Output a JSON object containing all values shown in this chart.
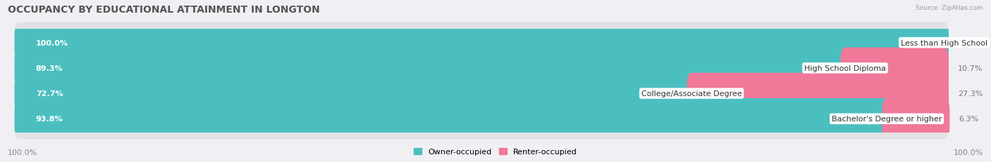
{
  "title": "OCCUPANCY BY EDUCATIONAL ATTAINMENT IN LONGTON",
  "source": "Source: ZipAtlas.com",
  "categories": [
    "Less than High School",
    "High School Diploma",
    "College/Associate Degree",
    "Bachelor's Degree or higher"
  ],
  "owner_values": [
    100.0,
    89.3,
    72.7,
    93.8
  ],
  "renter_values": [
    0.0,
    10.7,
    27.3,
    6.3
  ],
  "owner_color": "#4BBFC0",
  "renter_color": "#F07898",
  "bar_bg_color": "#E2E2E6",
  "fig_bg_color": "#F0F0F4",
  "owner_label": "Owner-occupied",
  "renter_label": "Renter-occupied",
  "title_fontsize": 10,
  "label_fontsize": 8,
  "cat_fontsize": 8,
  "value_fontsize": 8,
  "bar_height": 0.62,
  "bar_gap": 0.38,
  "figsize": [
    14.06,
    2.32
  ],
  "dpi": 100,
  "x_left_label": "100.0%",
  "x_right_label": "100.0%"
}
